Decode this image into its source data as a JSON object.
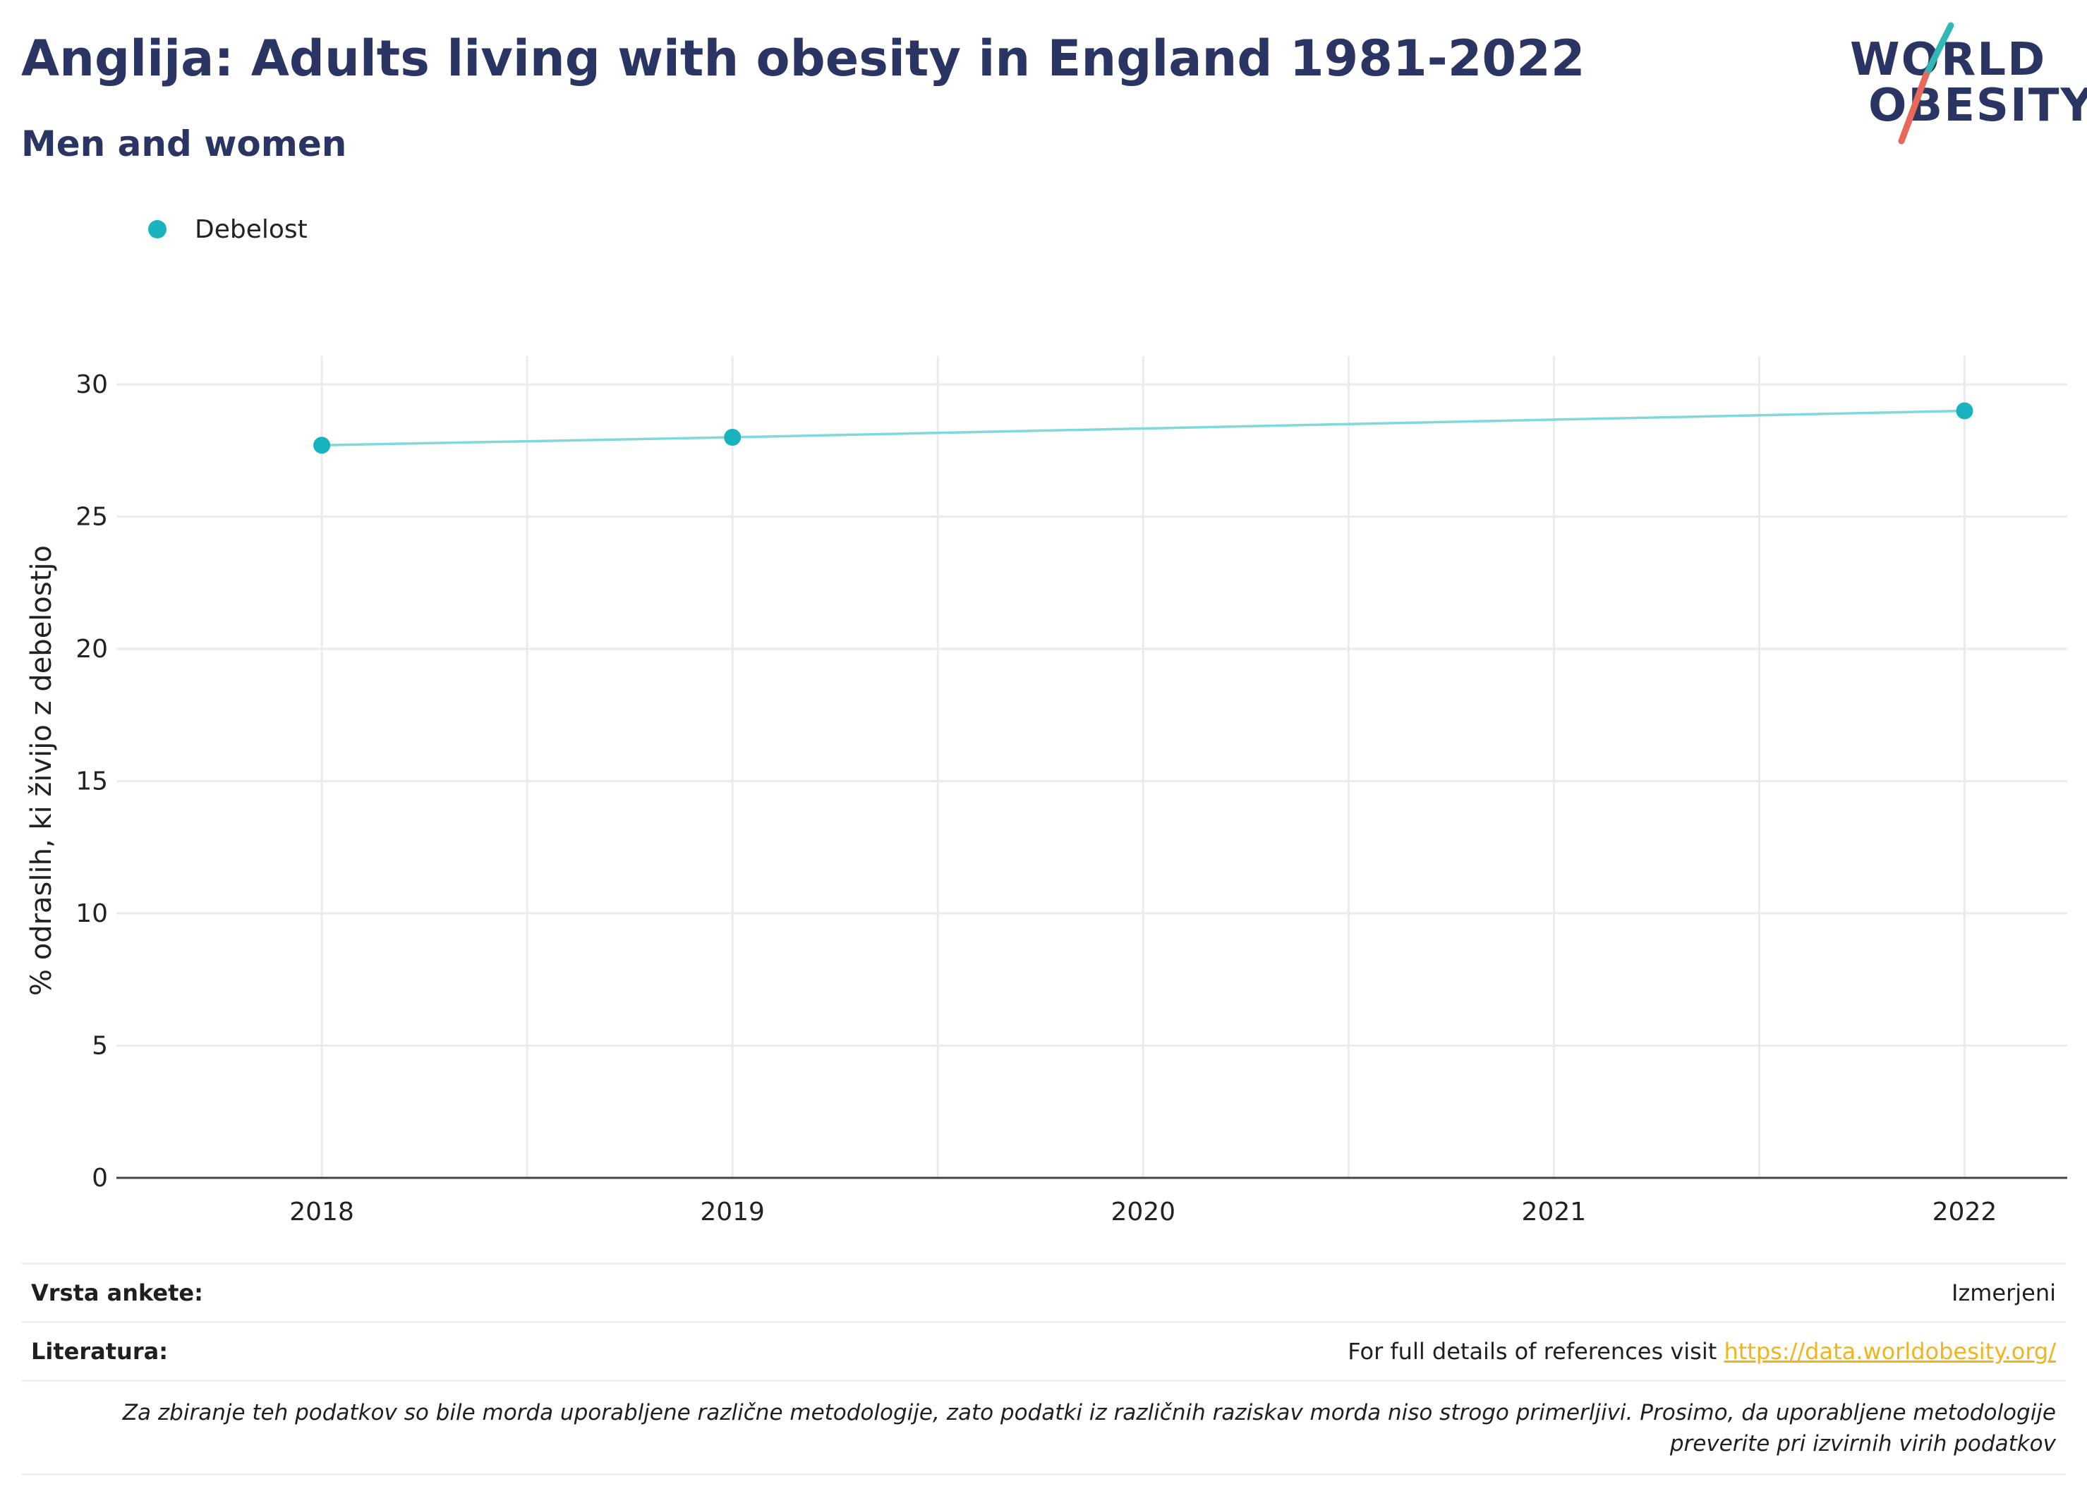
{
  "header": {
    "title": "Anglija: Adults living with obesity in England 1981-2022",
    "subtitle": "Men and women"
  },
  "logo": {
    "line1": "WORLD",
    "line2": "OBESITY"
  },
  "colors": {
    "series": "#19b3bd",
    "line": "#7fd8dc",
    "title": "#2a3563",
    "link": "#f1b41c"
  },
  "chart_data": {
    "type": "line",
    "ylabel": "% odraslih, ki živijo z debelostjo",
    "xlabel": "",
    "x": [
      2018,
      2019,
      2020,
      2021,
      2022
    ],
    "x_ticks": [
      "2018",
      "2019",
      "2020",
      "2021",
      "2022"
    ],
    "y_ticks": [
      "0",
      "5",
      "10",
      "15",
      "20",
      "25",
      "30"
    ],
    "ylim": [
      0,
      30
    ],
    "grid": true,
    "legend_position": "top-left",
    "series": [
      {
        "name": "Debelost",
        "x": [
          2018,
          2019,
          2022
        ],
        "values": [
          27.7,
          28.0,
          29.0
        ]
      }
    ]
  },
  "info": {
    "survey_type_label": "Vrsta ankete:",
    "survey_type_value": "Izmerjeni",
    "references_label": "Literatura:",
    "references_text": "For full details of references visit ",
    "references_link": "https://data.worldobesity.org/",
    "note": "Za zbiranje teh podatkov so bile morda uporabljene različne metodologije, zato podatki iz različnih raziskav morda niso strogo primerljivi. Prosimo, da uporabljene metodologije preverite pri izvirnih virih podatkov"
  }
}
